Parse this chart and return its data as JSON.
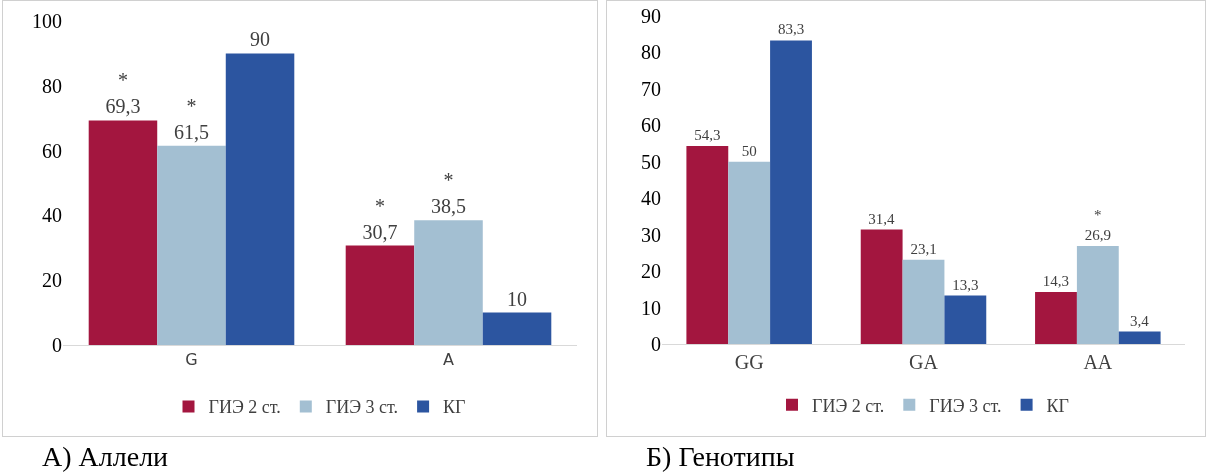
{
  "chart_data": [
    {
      "type": "bar",
      "title": "А) Аллели",
      "categories": [
        "G",
        "A"
      ],
      "series": [
        {
          "name": "ГИЭ 2 ст.",
          "color": "#a3163f",
          "values": [
            69.3,
            30.7
          ],
          "value_labels": [
            "*\n69,3",
            "*\n30,7"
          ]
        },
        {
          "name": "ГИЭ 3 ст.",
          "color": "#a3bfd2",
          "values": [
            61.5,
            38.5
          ],
          "value_labels": [
            "*\n61,5",
            "*\n38,5"
          ]
        },
        {
          "name": "КГ",
          "color": "#2c55a0",
          "values": [
            90,
            10
          ],
          "value_labels": [
            "90",
            "10"
          ]
        }
      ],
      "ylim": [
        0,
        100
      ],
      "yticks": [
        0,
        20,
        40,
        60,
        80,
        100
      ],
      "grid": false,
      "legend": "bottom"
    },
    {
      "type": "bar",
      "title": "Б) Генотипы",
      "categories": [
        "GG",
        "GA",
        "AA"
      ],
      "series": [
        {
          "name": "ГИЭ 2 ст.",
          "color": "#a3163f",
          "values": [
            54.3,
            31.4,
            14.3
          ],
          "value_labels": [
            "54,3",
            "31,4",
            "14,3"
          ]
        },
        {
          "name": "ГИЭ 3 ст.",
          "color": "#a3bfd2",
          "values": [
            50,
            23.1,
            26.9
          ],
          "value_labels": [
            "50",
            "23,1",
            "*\n26,9"
          ]
        },
        {
          "name": "КГ",
          "color": "#2c55a0",
          "values": [
            83.3,
            13.3,
            3.4
          ],
          "value_labels": [
            "83,3",
            "13,3",
            "3,4"
          ]
        }
      ],
      "ylim": [
        0,
        90
      ],
      "yticks": [
        0,
        10,
        20,
        30,
        40,
        50,
        60,
        70,
        80,
        90
      ],
      "grid": false,
      "legend": "bottom"
    }
  ]
}
